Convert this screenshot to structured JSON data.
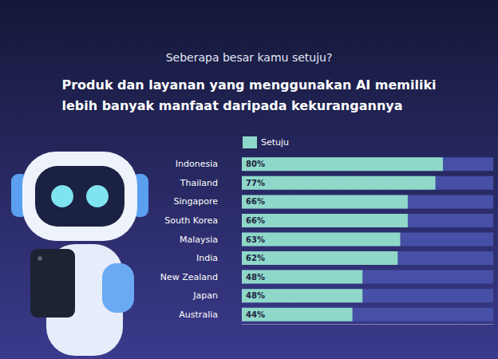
{
  "chart_data": {
    "type": "bar",
    "orientation": "horizontal",
    "subtitle": "Seberapa besar kamu setuju?",
    "title": "Produk dan layanan yang menggunakan AI memiliki lebih banyak manfaat daripada kekurangannya",
    "categories": [
      "Indonesia",
      "Thailand",
      "Singapore",
      "South Korea",
      "Malaysia",
      "India",
      "New Zealand",
      "Japan",
      "Australia"
    ],
    "series": [
      {
        "name": "Setuju",
        "color": "#8fd8c9",
        "values": [
          80,
          77,
          66,
          66,
          63,
          62,
          48,
          48,
          44
        ],
        "value_labels": [
          "80%",
          "77%",
          "66%",
          "66%",
          "63%",
          "62%",
          "48%",
          "48%",
          "44%"
        ]
      }
    ],
    "xlim": [
      0,
      100
    ],
    "tick_labels": "y",
    "grid": false,
    "legend": "top-left",
    "data_labels": true
  }
}
